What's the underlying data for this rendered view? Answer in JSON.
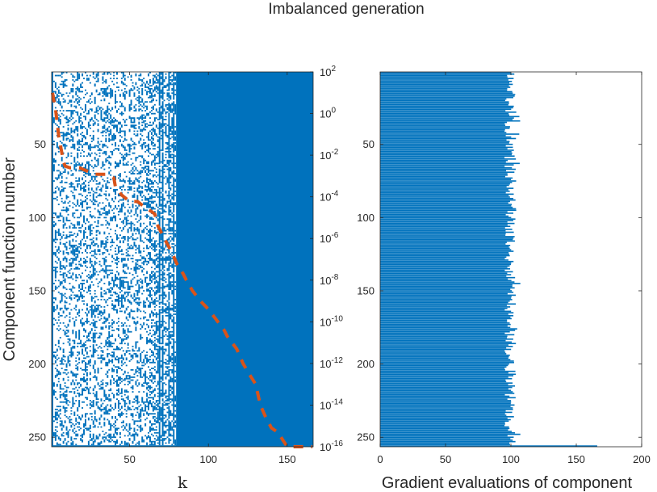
{
  "figure": {
    "title": "Imbalanced generation"
  },
  "colors": {
    "matrix": "#0072BD",
    "bars": "#0072BD",
    "dashed_line": "#D95319",
    "axes": "#262626"
  },
  "chart_data": [
    {
      "type": "heatmap",
      "xlabel": "k",
      "ylabel": "Component function number",
      "xlim": [
        1,
        166
      ],
      "ylim": [
        1,
        256
      ],
      "y_reversed": true,
      "xticks": [
        50,
        100,
        150
      ],
      "xtick_labels": [
        "50",
        "100",
        "150"
      ],
      "yticks": [
        50,
        100,
        150,
        200,
        250
      ],
      "ytick_labels": [
        "50",
        "100",
        "150",
        "200",
        "250"
      ],
      "description_of_cells": "filled cell = component gradient evaluated at iteration k; sparse for k < 80, fully filled for k >= 80; bottom row (256) filled for all k",
      "dense_from_k": 80,
      "always_filled_row": 256,
      "bright_columns": [
        69,
        71,
        75,
        78,
        82
      ],
      "right_axis": {
        "scale": "log",
        "ylim": [
          1e-16,
          100
        ],
        "ticks": [
          {
            "base": "10",
            "exp": "2"
          },
          {
            "base": "10",
            "exp": "0"
          },
          {
            "base": "10",
            "exp": "-2"
          },
          {
            "base": "10",
            "exp": "-4"
          },
          {
            "base": "10",
            "exp": "-6"
          },
          {
            "base": "10",
            "exp": "-8"
          },
          {
            "base": "10",
            "exp": "-10"
          },
          {
            "base": "10",
            "exp": "-12"
          },
          {
            "base": "10",
            "exp": "-14"
          },
          {
            "base": "10",
            "exp": "-16"
          }
        ]
      },
      "line": {
        "style": "dashed",
        "x": [
          1,
          3,
          5,
          8,
          9,
          12,
          18,
          28,
          35,
          40,
          41,
          45,
          48,
          50,
          55,
          60,
          62,
          66,
          68,
          72,
          77,
          80,
          84,
          86,
          90,
          95,
          100,
          103,
          110,
          112,
          118,
          122,
          126,
          130,
          133,
          136,
          140,
          144,
          150,
          166
        ],
        "y": [
          10,
          1.5,
          0.08,
          0.005,
          0.003,
          0.0025,
          0.0025,
          0.0012,
          0.0012,
          0.0008,
          0.0003,
          0.00012,
          8e-05,
          6e-05,
          6e-05,
          3e-05,
          2.5e-05,
          1.5e-05,
          4e-06,
          1e-06,
          2e-07,
          6e-08,
          2e-08,
          1e-08,
          3e-09,
          1e-09,
          4e-10,
          2e-10,
          4e-11,
          2e-11,
          5e-12,
          1e-12,
          3e-13,
          1e-13,
          1e-14,
          3e-15,
          8e-16,
          5e-16,
          1e-16,
          1e-16
        ]
      }
    },
    {
      "type": "bar",
      "orientation": "horizontal",
      "xlabel": "Gradient evaluations of component",
      "ylabel": "",
      "xlim": [
        0,
        200
      ],
      "ylim": [
        1,
        256
      ],
      "y_reversed": true,
      "xticks": [
        0,
        50,
        100,
        150,
        200
      ],
      "xtick_labels": [
        "0",
        "50",
        "100",
        "150",
        "200"
      ],
      "yticks": [
        50,
        100,
        150,
        200,
        250
      ],
      "ytick_labels": [
        "50",
        "100",
        "150",
        "200",
        "250"
      ],
      "values_summary": "components 1-255: roughly 95-108 evaluations each (mean ~100); component 256: 166",
      "typical_value": 100,
      "spread": [
        95,
        108
      ],
      "last_component": 256,
      "last_component_value": 166
    }
  ]
}
